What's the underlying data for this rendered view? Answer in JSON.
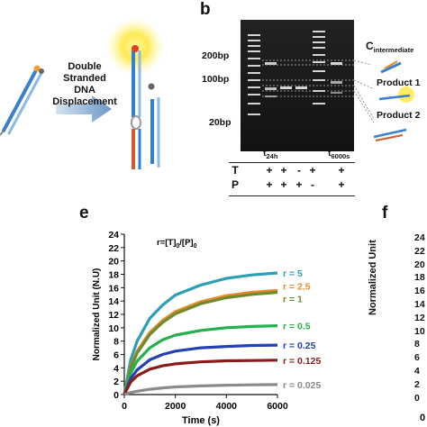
{
  "panels": {
    "b": "b",
    "e": "e",
    "f": "f"
  },
  "schematic": {
    "arrow_label_lines": [
      "Double",
      "Stranded",
      "DNA",
      "Displacement"
    ]
  },
  "gel": {
    "ladder_labels": [
      "200bp",
      "100bp",
      "20bp"
    ],
    "band_labels": {
      "c_main": "C",
      "c_sub": "intermediate",
      "product1": "Product 1",
      "product2": "Product 2"
    },
    "time_labels": [
      {
        "main": "t",
        "sub": "24h"
      },
      {
        "main": "t",
        "sub": "6000s"
      }
    ],
    "rows": [
      {
        "label": "T",
        "cells": [
          "+",
          "+",
          "-",
          "+",
          "",
          "+"
        ]
      },
      {
        "label": "P",
        "cells": [
          "+",
          "+",
          "+",
          "-",
          "",
          "+"
        ]
      }
    ]
  },
  "panel_f": {
    "ticks": [
      "24",
      "22",
      "20",
      "18",
      "16",
      "14",
      "12",
      "10",
      "8",
      "6",
      "4",
      "2",
      "0"
    ],
    "ylabel": "Normalized Unit",
    "trailing_tick": "0"
  },
  "chart_data": {
    "type": "line",
    "title": "r=[T]0/[P]0",
    "xlabel": "Time (s)",
    "ylabel": "Normalized Unit (N.U)",
    "xlim": [
      0,
      6000
    ],
    "ylim": [
      0,
      24
    ],
    "xticks": [
      0,
      2000,
      4000,
      6000
    ],
    "yticks": [
      0,
      2,
      4,
      6,
      8,
      10,
      12,
      14,
      16,
      18,
      20,
      22,
      24
    ],
    "grid": false,
    "legend": "curve labels at right end",
    "x": [
      0,
      250,
      500,
      1000,
      1500,
      2000,
      3000,
      4000,
      5000,
      6000
    ],
    "series": [
      {
        "name": "r = 5",
        "color": "#2a9fb5",
        "values": [
          0,
          5.2,
          8.0,
          11.4,
          13.4,
          14.9,
          16.4,
          17.4,
          17.9,
          18.2
        ]
      },
      {
        "name": "r = 2.5",
        "color": "#e8892c",
        "values": [
          0,
          4.2,
          6.5,
          9.3,
          11.1,
          12.4,
          13.9,
          14.8,
          15.3,
          15.6
        ]
      },
      {
        "name": "r = 1",
        "color": "#6e8b2c",
        "values": [
          0,
          4.0,
          6.2,
          9.0,
          10.8,
          12.1,
          13.6,
          14.5,
          15.0,
          15.3
        ]
      },
      {
        "name": "r = 0.5",
        "color": "#22b14c",
        "values": [
          0,
          3.2,
          5.0,
          7.0,
          8.2,
          8.9,
          9.6,
          10.0,
          10.2,
          10.3
        ]
      },
      {
        "name": "r = 0.25",
        "color": "#2340b8",
        "values": [
          0,
          2.4,
          3.7,
          5.2,
          6.0,
          6.5,
          7.0,
          7.2,
          7.35,
          7.4
        ]
      },
      {
        "name": "r = 0.125",
        "color": "#8b1a1a",
        "values": [
          0,
          1.9,
          2.8,
          3.8,
          4.3,
          4.6,
          4.9,
          5.05,
          5.1,
          5.15
        ]
      },
      {
        "name": "r = 0.025",
        "color": "#8a8a8a",
        "values": [
          0,
          0.3,
          0.5,
          0.8,
          1.0,
          1.15,
          1.3,
          1.4,
          1.45,
          1.5
        ]
      }
    ]
  }
}
